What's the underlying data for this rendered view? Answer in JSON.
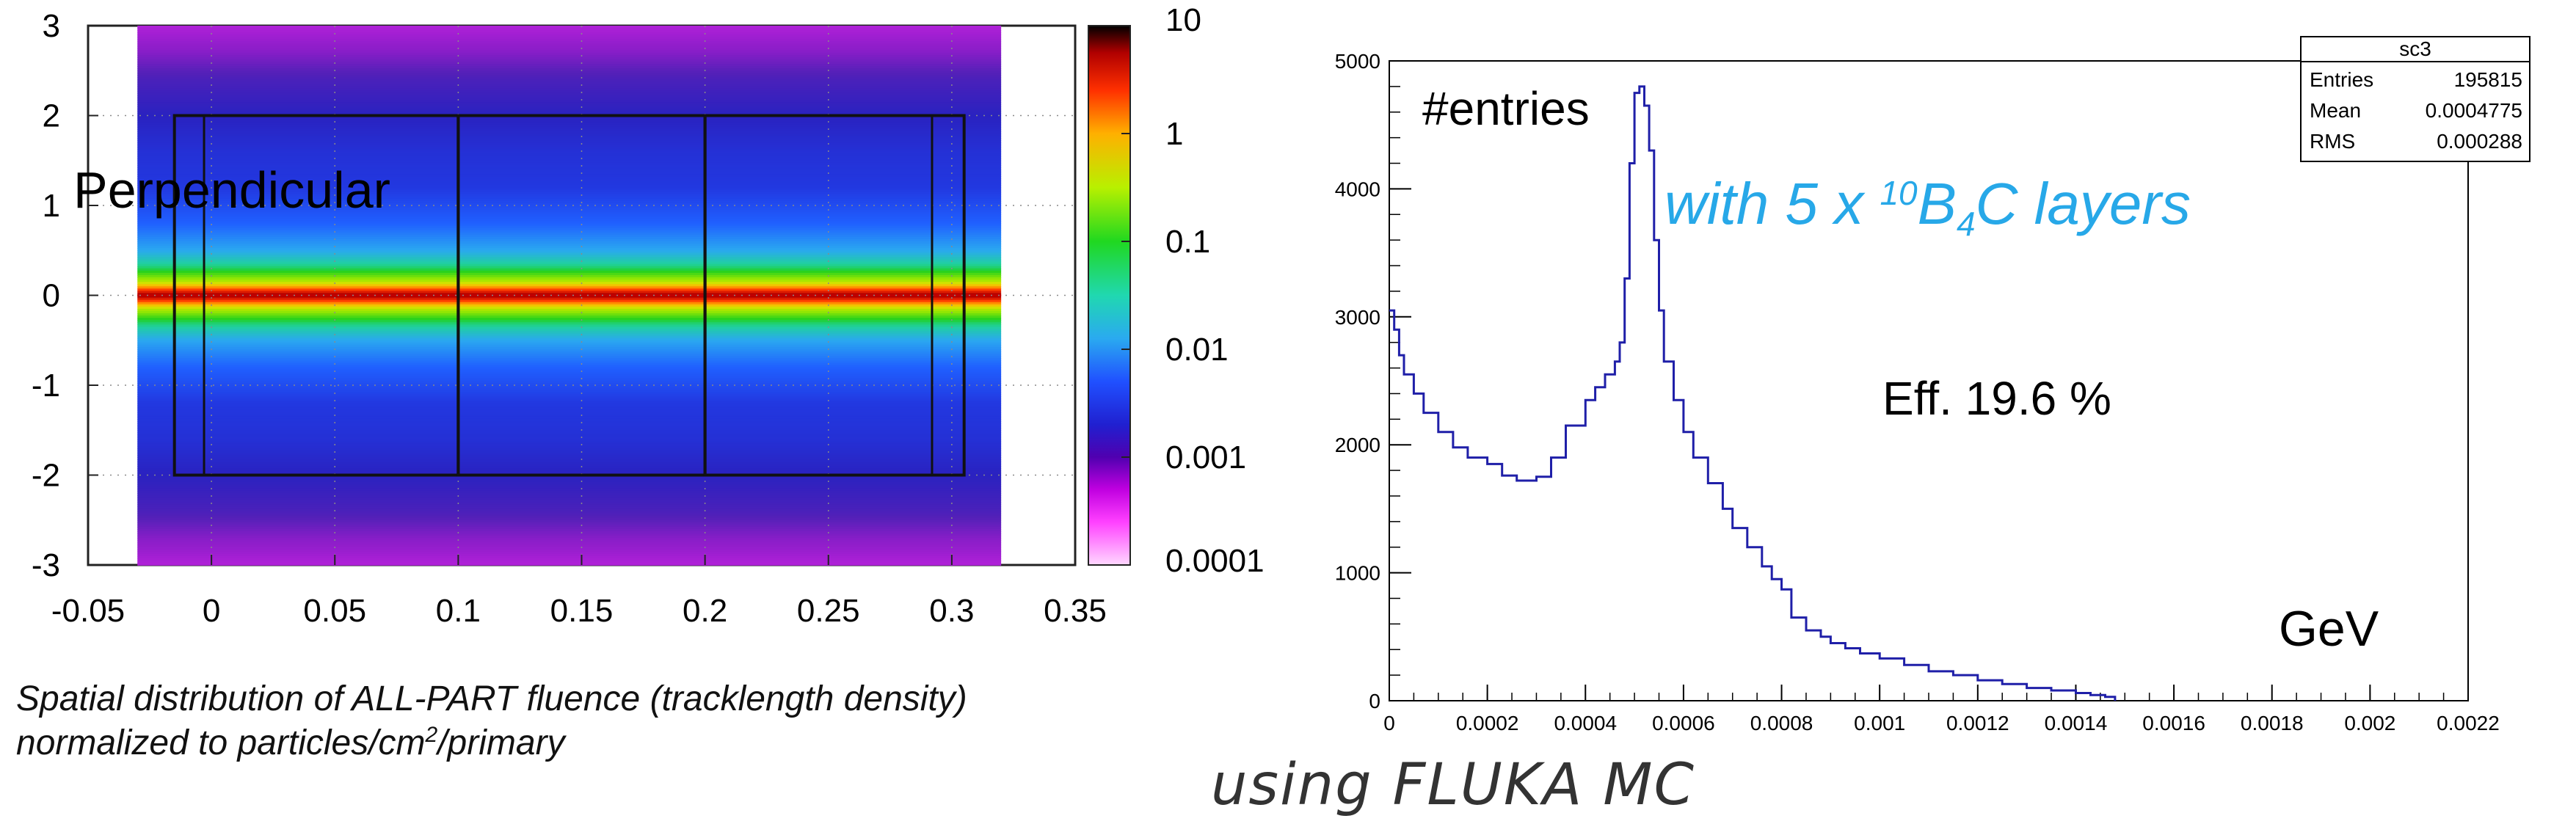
{
  "chart_data": [
    {
      "type": "heatmap",
      "title": "",
      "xlabel": "",
      "ylabel": "",
      "xlim": [
        -0.05,
        0.35
      ],
      "ylim": [
        -3,
        3
      ],
      "x_ticks": [
        -0.05,
        0,
        0.05,
        0.1,
        0.15,
        0.2,
        0.25,
        0.3,
        0.35
      ],
      "x_tick_labels": [
        "-0.05",
        "0",
        "0.05",
        "0.1",
        "0.15",
        "0.2",
        "0.25",
        "0.3",
        "0.35"
      ],
      "y_ticks": [
        3,
        2,
        1,
        0,
        -1,
        -2,
        -3
      ],
      "y_tick_labels": [
        "3",
        "2",
        "1",
        "0",
        "-1",
        "-2",
        "-3"
      ],
      "data_extent": {
        "x": [
          -0.03,
          0.32
        ],
        "y": [
          -3,
          3
        ]
      },
      "detector_boxes": [
        {
          "x": [
            -0.015,
            0.1
          ],
          "y": [
            -2,
            2
          ]
        },
        {
          "x": [
            0.1,
            0.2
          ],
          "y": [
            -2,
            2
          ]
        },
        {
          "x": [
            0.2,
            0.305
          ],
          "y": [
            -2,
            2
          ]
        }
      ],
      "inner_columns_x": [
        -0.003,
        0.292
      ],
      "annotation": "Perpendicular",
      "colorbar": {
        "scale": "log",
        "range": [
          0.0001,
          10
        ],
        "ticks": [
          10,
          1,
          0.1,
          0.01,
          0.001,
          0.0001
        ],
        "tick_labels": [
          "10",
          "1",
          "0.1",
          "0.01",
          "0.001",
          "0.0001"
        ]
      },
      "profile": {
        "description": "fluence vs y (log10), symmetric about y=0",
        "y": [
          0,
          0.08,
          0.15,
          0.3,
          0.5,
          0.8,
          1.2,
          1.6,
          2.0,
          2.4,
          2.8,
          3.0
        ],
        "log10_value": [
          0.8,
          0.1,
          -0.5,
          -1.0,
          -1.4,
          -1.7,
          -2.0,
          -2.1,
          -2.3,
          -2.6,
          -3.1,
          -3.4
        ]
      },
      "caption_line1": "Spatial distribution of ALL-PART fluence (tracklength density)",
      "caption_line2_prefix": "normalized to particles/cm",
      "caption_line2_sup": "2",
      "caption_line2_suffix": "/primary"
    },
    {
      "type": "line",
      "style": "histogram",
      "title": "",
      "xlabel": "GeV",
      "ylabel": "#entries",
      "xlim": [
        0,
        0.0022
      ],
      "ylim": [
        0,
        5000
      ],
      "x_ticks": [
        0,
        0.0002,
        0.0004,
        0.0006,
        0.0008,
        0.001,
        0.0012,
        0.0014,
        0.0016,
        0.0018,
        0.002,
        0.0022
      ],
      "x_tick_labels": [
        "0",
        "0.0002",
        "0.0004",
        "0.0006",
        "0.0008",
        "0.001",
        "0.0012",
        "0.0014",
        "0.0016",
        "0.0018",
        "0.002",
        "0.0022"
      ],
      "y_ticks": [
        0,
        1000,
        2000,
        3000,
        4000,
        5000
      ],
      "y_tick_labels": [
        "0",
        "1000",
        "2000",
        "3000",
        "4000",
        "5000"
      ],
      "series": [
        {
          "name": "sc3",
          "color": "#1f1fa8",
          "x": [
            0,
            1e-05,
            2e-05,
            3e-05,
            5e-05,
            7e-05,
            0.0001,
            0.00013,
            0.00016,
            0.0002,
            0.00023,
            0.00026,
            0.0003,
            0.00033,
            0.00036,
            0.0004,
            0.00042,
            0.00044,
            0.00046,
            0.00047,
            0.00048,
            0.00049,
            0.0005,
            0.00051,
            0.00052,
            0.00053,
            0.00054,
            0.00055,
            0.00056,
            0.00058,
            0.0006,
            0.00062,
            0.00065,
            0.00068,
            0.0007,
            0.00073,
            0.00076,
            0.00078,
            0.0008,
            0.00082,
            0.00085,
            0.00088,
            0.0009,
            0.00093,
            0.00096,
            0.001,
            0.00105,
            0.0011,
            0.00115,
            0.0012,
            0.00125,
            0.0013,
            0.00135,
            0.0014,
            0.00143,
            0.00146,
            0.00148
          ],
          "values": [
            3050,
            2900,
            2700,
            2550,
            2400,
            2250,
            2100,
            1980,
            1900,
            1850,
            1760,
            1720,
            1750,
            1900,
            2150,
            2350,
            2450,
            2550,
            2650,
            2800,
            3300,
            4200,
            4750,
            4800,
            4650,
            4300,
            3600,
            3050,
            2650,
            2350,
            2100,
            1900,
            1700,
            1500,
            1350,
            1200,
            1050,
            950,
            870,
            650,
            550,
            500,
            450,
            410,
            370,
            330,
            280,
            230,
            200,
            160,
            130,
            100,
            80,
            60,
            45,
            30,
            0
          ]
        }
      ],
      "stats_box": {
        "title": "sc3",
        "rows": [
          {
            "label": "Entries",
            "value": "195815"
          },
          {
            "label": "Mean",
            "value": "0.0004775"
          },
          {
            "label": "RMS",
            "value": "0.000288"
          }
        ]
      },
      "annotations": {
        "layers_prefix": "with 5 x ",
        "layers_sup": "10",
        "layers_b": "B",
        "layers_sub": "4",
        "layers_suffix": "C layers",
        "layers_color": "#27a8e8",
        "efficiency": "Eff. 19.6 %"
      }
    }
  ],
  "footer": "using FLUKA MC"
}
